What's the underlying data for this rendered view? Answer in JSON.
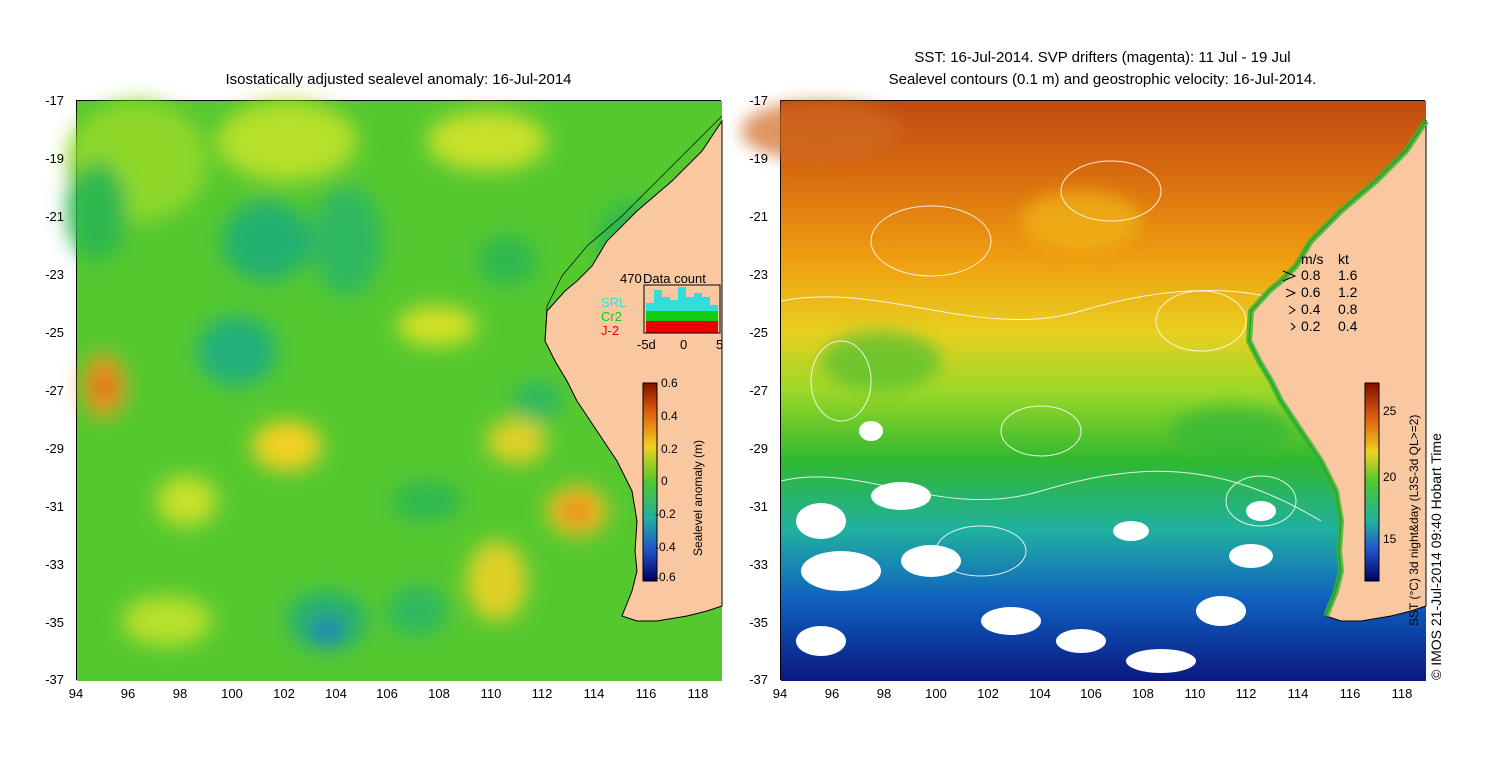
{
  "left": {
    "title": "Isostatically adjusted sealevel anomaly: 16-Jul-2014",
    "colorbar_title": "Sealevel anomaly (m)",
    "colorbar_ticks": [
      "0.6",
      "0.4",
      "0.2",
      "0",
      "-0.2",
      "-0.4",
      "-0.6"
    ],
    "data_count": {
      "title": "Data count",
      "max_label": "470",
      "sources": [
        {
          "name": "SRL",
          "color": "#33dddd"
        },
        {
          "name": "Cr2",
          "color": "#11cc11"
        },
        {
          "name": "J-2",
          "color": "#ee0000"
        }
      ],
      "x_ticks": [
        "-5d",
        "0",
        "5"
      ]
    }
  },
  "right": {
    "title_line1": "SST: 16-Jul-2014. SVP drifters (magenta): 11 Jul - 19 Jul",
    "title_line2": "Sealevel contours (0.1 m) and geostrophic velocity: 16-Jul-2014.",
    "colorbar_title": "SST (°C) 3d night&day (L3S-3d QL>=2)",
    "colorbar_ticks": [
      "25",
      "20",
      "15"
    ],
    "velocity_legend": {
      "header_ms": "m/s",
      "header_kt": "kt",
      "rows": [
        {
          "ms": "0.8",
          "kt": "1.6"
        },
        {
          "ms": "0.6",
          "kt": "1.2"
        },
        {
          "ms": "0.4",
          "kt": "0.8"
        },
        {
          "ms": "0.2",
          "kt": "0.4"
        }
      ]
    }
  },
  "axes": {
    "y_ticks": [
      "-17",
      "-19",
      "-21",
      "-23",
      "-25",
      "-27",
      "-29",
      "-31",
      "-33",
      "-35",
      "-37"
    ],
    "x_ticks": [
      "94",
      "96",
      "98",
      "100",
      "102",
      "104",
      "106",
      "108",
      "110",
      "112",
      "114",
      "116",
      "118"
    ]
  },
  "copyright": "© IMOS 21-Jul-2014 09:40 Hobart Time",
  "colors": {
    "land": "#fac8a0",
    "ocean_mid": "#4cc828"
  }
}
